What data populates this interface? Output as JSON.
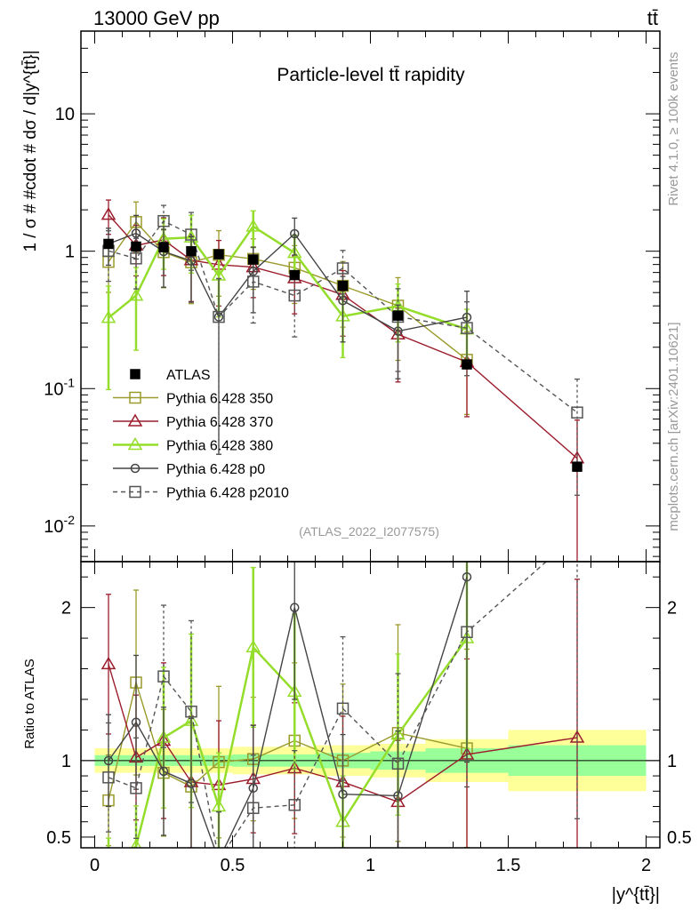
{
  "header": {
    "energy": "13000 GeV pp",
    "process": "tt̄",
    "plot_title": "Particle-level tt̄ rapidity",
    "analysis_id": "(ATLAS_2022_I2077575)",
    "side_label_top": "Rivet 4.1.0, ≥ 100k events",
    "side_label_bottom": "mcplots.cern.ch [arXiv:2401.10621]"
  },
  "colors": {
    "atlas": "#000000",
    "py350": "#9a9a2a",
    "py370": "#9b1c2c",
    "py380": "#94dd2a",
    "p0": "#444444",
    "p2010": "#555555",
    "band_yellow": "#ffff99",
    "band_green": "#99ff99"
  },
  "chart_data": {
    "type": "line",
    "xlabel": "|y^{tt̄}|",
    "ylabel": "1 / σ # #cdot # dσ / d|y^{tt̄}|",
    "ratio_ylabel": "Ratio to ATLAS",
    "xlim": [
      -0.05,
      2.05
    ],
    "ylim": [
      0.0055,
      40
    ],
    "yscale": "log",
    "ratio_ylim": [
      0.43,
      2.3
    ],
    "x_ticks": [
      "0",
      "0.5",
      "1",
      "1.5",
      "2"
    ],
    "y_ticks": [
      "10^{-2}",
      "10^{-1}",
      "1",
      "10"
    ],
    "ratio_ticks": [
      "0.5",
      "1",
      "2"
    ],
    "x": [
      0.05,
      0.15,
      0.25,
      0.35,
      0.45,
      0.575,
      0.725,
      0.9,
      1.1,
      1.35,
      1.75
    ],
    "bin_edges": [
      0.0,
      0.1,
      0.2,
      0.3,
      0.4,
      0.5,
      0.65,
      0.8,
      1.0,
      1.2,
      1.5,
      2.0
    ],
    "data": {
      "name": "ATLAS",
      "values": [
        1.13,
        1.08,
        1.07,
        1.0,
        0.95,
        0.87,
        0.67,
        0.56,
        0.34,
        0.15,
        0.027
      ],
      "band_stat": [
        0.035,
        0.035,
        0.035,
        0.035,
        0.035,
        0.04,
        0.04,
        0.05,
        0.06,
        0.08,
        0.1
      ],
      "band_total": [
        0.08,
        0.08,
        0.08,
        0.08,
        0.08,
        0.09,
        0.09,
        0.1,
        0.11,
        0.14,
        0.2
      ]
    },
    "legend": [
      "ATLAS",
      "Pythia 6.428 350",
      "Pythia 6.428 370",
      "Pythia 6.428 380",
      "Pythia 6.428 p0",
      "Pythia 6.428 p2010"
    ],
    "series": [
      {
        "name": "Pythia 6.428 350",
        "key": "py350",
        "marker": "square-open",
        "dashed": false,
        "ratio": [
          0.74,
          1.51,
          0.92,
          0.83,
          0.99,
          1.01,
          1.13,
          1.0,
          1.18,
          1.08,
          null
        ],
        "rel_err": [
          0.4,
          0.4,
          0.45,
          0.5,
          0.5,
          0.4,
          0.45,
          0.5,
          0.6,
          0.6,
          0.9
        ]
      },
      {
        "name": "Pythia 6.428 370",
        "key": "py370",
        "marker": "triangle-open",
        "dashed": false,
        "ratio": [
          1.63,
          1.02,
          1.13,
          0.86,
          0.84,
          0.88,
          0.95,
          0.86,
          0.73,
          1.04,
          1.15
        ],
        "rel_err": [
          0.28,
          0.4,
          0.45,
          0.5,
          0.5,
          0.4,
          0.45,
          0.5,
          0.55,
          0.6,
          0.9
        ]
      },
      {
        "name": "Pythia 6.428 380",
        "key": "py380",
        "marker": "triangle-open",
        "dashed": false,
        "ratio": [
          0.29,
          0.44,
          1.15,
          1.26,
          0.7,
          1.74,
          1.45,
          0.6,
          1.17,
          1.8,
          null
        ],
        "rel_err": [
          0.7,
          0.6,
          0.4,
          0.45,
          0.5,
          0.3,
          0.35,
          0.5,
          0.45,
          0.4,
          0.9
        ]
      },
      {
        "name": "Pythia 6.428 p0",
        "key": "p0",
        "marker": "circle-open",
        "dashed": false,
        "ratio": [
          1.0,
          1.25,
          0.93,
          0.85,
          0.35,
          0.82,
          2.0,
          0.78,
          0.77,
          2.2,
          null
        ],
        "rel_err": [
          0.3,
          0.35,
          0.45,
          0.5,
          0.9,
          0.5,
          0.3,
          0.5,
          0.55,
          0.55,
          0.9
        ]
      },
      {
        "name": "Pythia 6.428 p2010",
        "key": "p2010",
        "marker": "square-open",
        "dashed": true,
        "ratio": [
          0.89,
          0.82,
          1.55,
          1.32,
          0.35,
          0.69,
          0.71,
          1.34,
          0.98,
          1.84,
          2.48
        ],
        "rel_err": [
          0.4,
          0.4,
          0.3,
          0.45,
          0.9,
          0.5,
          0.5,
          0.35,
          0.6,
          0.55,
          0.75
        ]
      }
    ]
  }
}
